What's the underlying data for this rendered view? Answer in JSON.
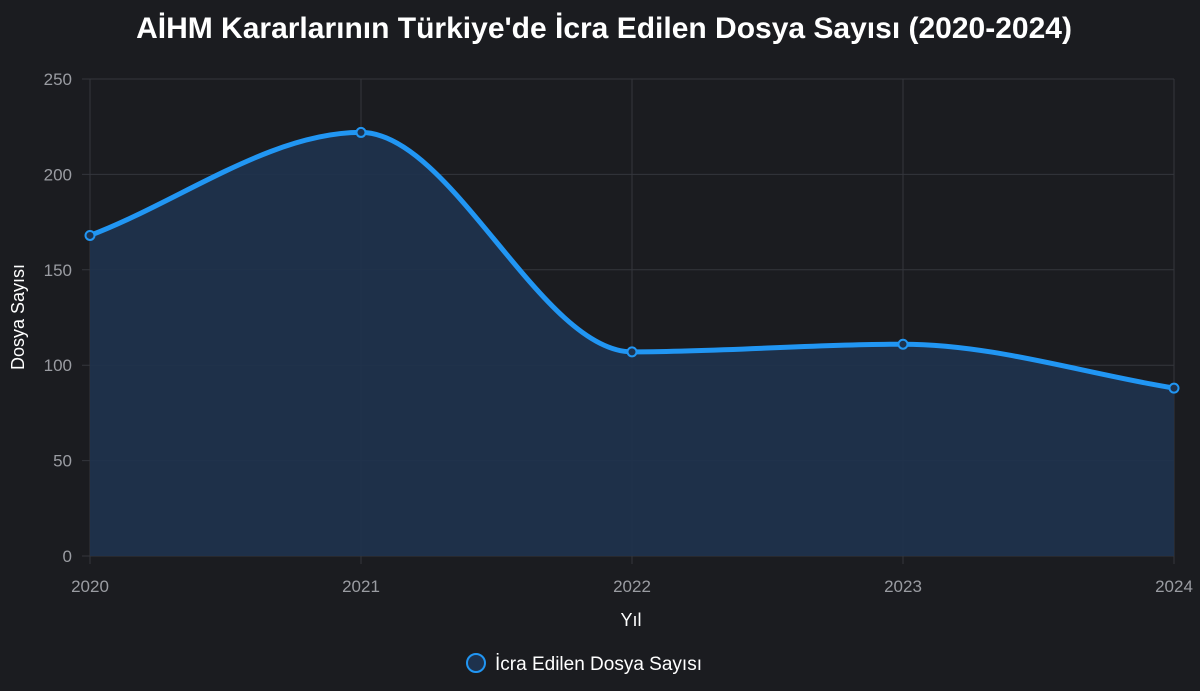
{
  "chart_data": {
    "type": "area",
    "title": "AİHM Kararlarının Türkiye'de İcra Edilen Dosya Sayısı (2020-2024)",
    "xlabel": "Yıl",
    "ylabel": "Dosya Sayısı",
    "categories": [
      "2020",
      "2021",
      "2022",
      "2023",
      "2024"
    ],
    "series": [
      {
        "name": "İcra Edilen Dosya Sayısı",
        "values": [
          168,
          222,
          107,
          111,
          88
        ]
      }
    ],
    "ylim": [
      0,
      250
    ],
    "yticks": [
      0,
      50,
      100,
      150,
      200,
      250
    ],
    "grid": true,
    "legend_position": "bottom",
    "colors": {
      "line": "#2196f3",
      "fill": "#1e324d",
      "grid": "#34363c",
      "background": "#1b1c20"
    }
  }
}
